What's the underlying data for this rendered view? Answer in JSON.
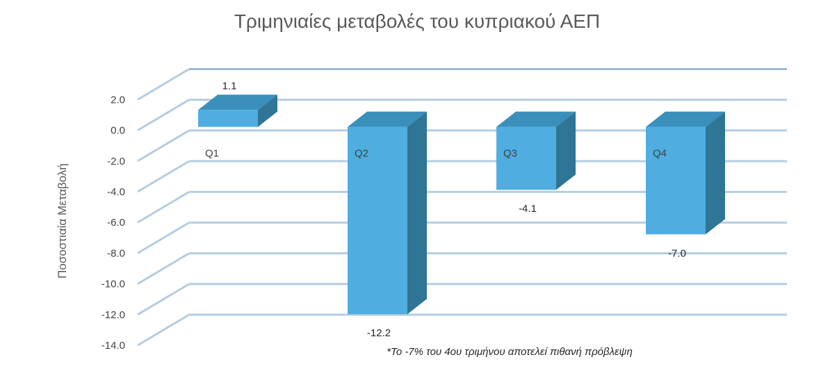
{
  "chart_data": {
    "type": "bar",
    "title": "Τριμηνιαίες μεταβολές του κυπριακού ΑΕΠ",
    "ylabel": "Ποσοστιαία Μεταβολή",
    "xlabel": "",
    "categories": [
      "Q1",
      "Q2",
      "Q3",
      "Q4"
    ],
    "values": [
      1.1,
      -12.2,
      -4.1,
      -7.0
    ],
    "data_labels": [
      "1.1",
      "-12.2",
      "-4.1",
      "-7.0"
    ],
    "ylim": [
      -14,
      2
    ],
    "yticks": [
      "2.0",
      "0.0",
      "-2.0",
      "-4.0",
      "-6.0",
      "-8.0",
      "-10.0",
      "-12.0",
      "-14.0"
    ],
    "grid": true,
    "three_d": true,
    "bar_color": "#4FADE0",
    "bar_side_color": "#2E7596",
    "bar_top_color": "#3A8FBB",
    "gridline_color": "#B4CDE0",
    "note": "*Το -7% του 4ου τριμήνου αποτελεί πιθανή πρόβλεψη"
  }
}
